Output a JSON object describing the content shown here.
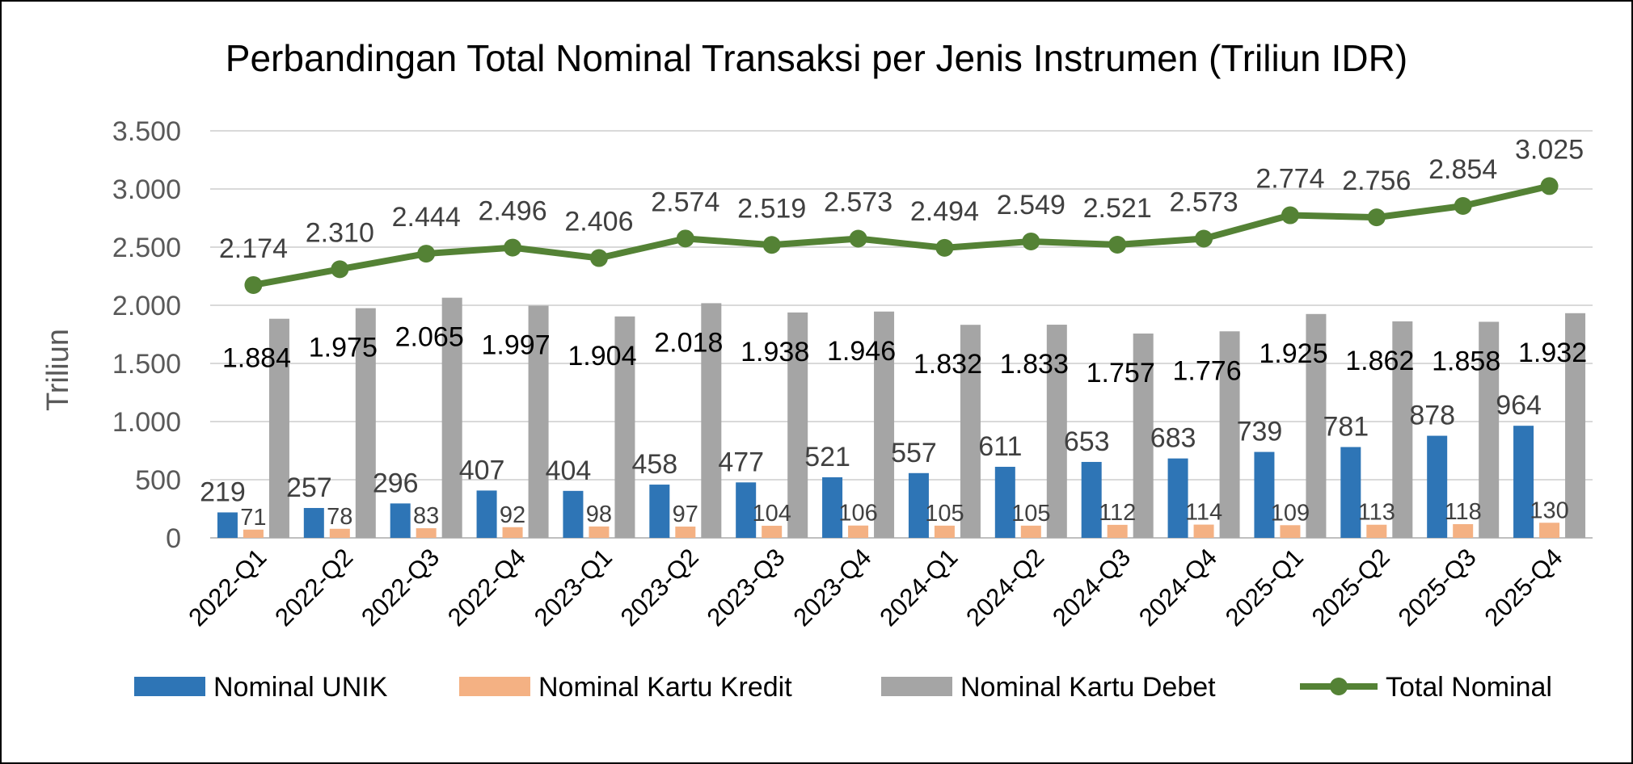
{
  "chart_data": {
    "type": "bar",
    "title": "Perbandingan Total Nominal Transaksi per Jenis Instrumen  (Triliun IDR)",
    "ylabel": "Triliun",
    "xlabel": "",
    "ylim": [
      0,
      3500
    ],
    "yticks": [
      0,
      500,
      1000,
      1500,
      2000,
      2500,
      3000,
      3500
    ],
    "ytick_labels": [
      "0",
      "500",
      "1.000",
      "1.500",
      "2.000",
      "2.500",
      "3.000",
      "3.500"
    ],
    "grid": true,
    "legend_position": "bottom",
    "categories": [
      "2022-Q1",
      "2022-Q2",
      "2022-Q3",
      "2022-Q4",
      "2023-Q1",
      "2023-Q2",
      "2023-Q3",
      "2023-Q4",
      "2024-Q1",
      "2024-Q2",
      "2024-Q3",
      "2024-Q4",
      "2025-Q1",
      "2025-Q2",
      "2025-Q3",
      "2025-Q4"
    ],
    "series": [
      {
        "name": "Nominal UNIK",
        "type": "bar",
        "color": "#2E75B6",
        "values": [
          219,
          257,
          296,
          407,
          404,
          458,
          477,
          521,
          557,
          611,
          653,
          683,
          739,
          781,
          878,
          964
        ],
        "labels": [
          "219",
          "257",
          "296",
          "407",
          "404",
          "458",
          "477",
          "521",
          "557",
          "611",
          "653",
          "683",
          "739",
          "781",
          "878",
          "964"
        ]
      },
      {
        "name": "Nominal Kartu Kredit",
        "type": "bar",
        "color": "#F4B183",
        "values": [
          71,
          78,
          83,
          92,
          98,
          97,
          104,
          106,
          105,
          105,
          112,
          114,
          109,
          113,
          118,
          130
        ],
        "labels": [
          "71",
          "78",
          "83",
          "92",
          "98",
          "97",
          "104",
          "106",
          "105",
          "105",
          "112",
          "114",
          "109",
          "113",
          "118",
          "130"
        ]
      },
      {
        "name": "Nominal Kartu Debet",
        "type": "bar",
        "color": "#A5A5A5",
        "values": [
          1884,
          1975,
          2065,
          1997,
          1904,
          2018,
          1938,
          1946,
          1832,
          1833,
          1757,
          1776,
          1925,
          1862,
          1858,
          1932
        ],
        "labels": [
          "1.884",
          "1.975",
          "2.065",
          "1.997",
          "1.904",
          "2.018",
          "1.938",
          "1.946",
          "1.832",
          "1.833",
          "1.757",
          "1.776",
          "1.925",
          "1.862",
          "1.858",
          "1.932"
        ]
      },
      {
        "name": "Total Nominal",
        "type": "line",
        "color": "#548235",
        "values": [
          2174,
          2310,
          2444,
          2496,
          2406,
          2574,
          2519,
          2573,
          2494,
          2549,
          2521,
          2573,
          2774,
          2756,
          2854,
          3025
        ],
        "labels": [
          "2.174",
          "2.310",
          "2.444",
          "2.496",
          "2.406",
          "2.574",
          "2.519",
          "2.573",
          "2.494",
          "2.549",
          "2.521",
          "2.573",
          "2.774",
          "2.756",
          "2.854",
          "3.025"
        ]
      }
    ]
  },
  "colors": {
    "grid": "#D9D9D9",
    "axis": "#BFBFBF",
    "frame": "#000000"
  }
}
